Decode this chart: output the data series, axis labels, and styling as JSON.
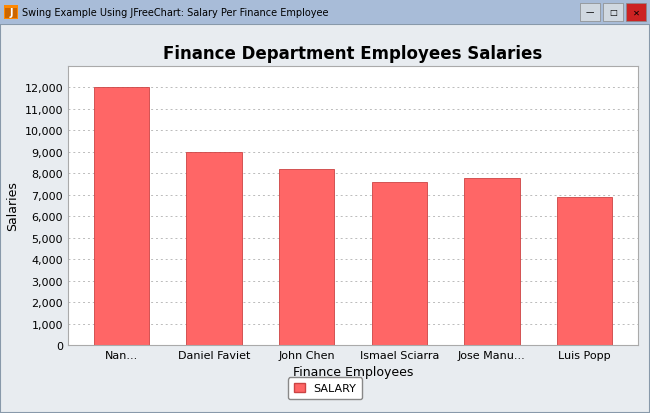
{
  "title": "Finance Department Employees Salaries",
  "xlabel": "Finance Employees",
  "ylabel": "Salaries",
  "categories": [
    "Nan...",
    "Daniel Faviet",
    "John Chen",
    "Ismael Sciarra",
    "Jose Manu...",
    "Luis Popp"
  ],
  "values": [
    12000,
    9000,
    8200,
    7600,
    7800,
    6900
  ],
  "bar_color": "#FF6666",
  "bar_edge_color": "#CC4444",
  "ylim": [
    0,
    13000
  ],
  "yticks": [
    0,
    1000,
    2000,
    3000,
    4000,
    5000,
    6000,
    7000,
    8000,
    9000,
    10000,
    11000,
    12000
  ],
  "ytick_labels": [
    "0",
    "1,000",
    "2,000",
    "3,000",
    "4,000",
    "5,000",
    "6,000",
    "7,000",
    "8,000",
    "9,000",
    "10,000",
    "11,000",
    "12,000"
  ],
  "legend_label": "SALARY",
  "window_title": "Swing Example Using JFreeChart: Salary Per Finance Employee",
  "outer_bg_color": "#D4DCE8",
  "inner_bg_color": "#E8ECF0",
  "plot_bg_color": "#FFFFFF",
  "titlebar_bg": "#A8BCD8",
  "title_fontsize": 12,
  "label_fontsize": 9,
  "tick_fontsize": 8,
  "grid_color": "#BBBBBB",
  "window_border_color": "#8899AA"
}
